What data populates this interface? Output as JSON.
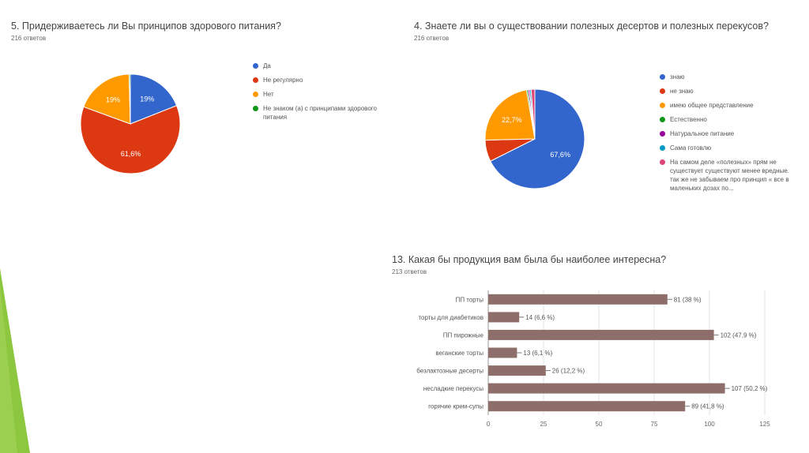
{
  "colors": {
    "blue": "#3366cc",
    "red": "#dc3912",
    "orange": "#ff9900",
    "green": "#109618",
    "purple": "#990099",
    "teal": "#0099c6",
    "pink": "#dd4477",
    "bar": "#8d6e6a",
    "accent_green": "#8dc63f"
  },
  "q5": {
    "title": "5. Придерживаетесь ли Вы принципов здорового питания?",
    "count": "216 ответов"
  },
  "q4": {
    "title": "4. Знаете ли вы о существовании полезных десертов и полезных перекусов?",
    "count": "216 ответов"
  },
  "q13": {
    "title": "13. Какая бы продукция вам была бы наиболее интересна?",
    "count": "213 ответов"
  },
  "chart_data": [
    {
      "type": "pie",
      "title": "5. Придерживаетесь ли Вы принципов здорового питания?",
      "slices": [
        {
          "label": "Да",
          "value": 19,
          "display": "19%",
          "color": "#3366cc"
        },
        {
          "label": "Не регулярно",
          "value": 61.6,
          "display": "61,6%",
          "color": "#dc3912"
        },
        {
          "label": "Нет",
          "value": 19,
          "display": "19%",
          "color": "#ff9900"
        },
        {
          "label": "Не знаком (а) с принципами здорового питания",
          "value": 0.4,
          "display": "",
          "color": "#109618"
        }
      ]
    },
    {
      "type": "pie",
      "title": "4. Знаете ли вы о существовании полезных десертов и полезных перекусов?",
      "slices": [
        {
          "label": "знаю",
          "value": 67.6,
          "display": "67,6%",
          "color": "#3366cc"
        },
        {
          "label": "не знаю",
          "value": 7.0,
          "display": "",
          "color": "#dc3912"
        },
        {
          "label": "имею общее представление",
          "value": 22.7,
          "display": "22,7%",
          "color": "#ff9900"
        },
        {
          "label": "Естественно",
          "value": 0.5,
          "display": "",
          "color": "#109618"
        },
        {
          "label": "Натуральное питание",
          "value": 0.5,
          "display": "",
          "color": "#990099"
        },
        {
          "label": "Сама готовлю",
          "value": 0.5,
          "display": "",
          "color": "#0099c6"
        },
        {
          "label": "На самом деле «полезных» прям не существует существуют менее вредные. так же не забываем про принцип « все в маленьких дозах по...",
          "value": 1.2,
          "display": "",
          "color": "#dd4477"
        }
      ]
    },
    {
      "type": "bar",
      "orientation": "horizontal",
      "title": "13. Какая бы продукция вам была бы наиболее интересна?",
      "categories": [
        "ПП торты",
        "торты для диабетиков",
        "ПП пирожные",
        "веганские торты",
        "безлактозные десерты",
        "несладкие перекусы",
        "горячие крем-супы"
      ],
      "values": [
        81,
        14,
        102,
        13,
        26,
        107,
        89
      ],
      "labels": [
        "81 (38 %)",
        "14 (6,6 %)",
        "102 (47,9 %)",
        "13 (6,1 %)",
        "26 (12,2 %)",
        "107 (50,2 %)",
        "89 (41,8 %)"
      ],
      "xlim": [
        0,
        125
      ],
      "xticks": [
        "0",
        "25",
        "50",
        "75",
        "100",
        "125"
      ],
      "grid": true
    }
  ]
}
